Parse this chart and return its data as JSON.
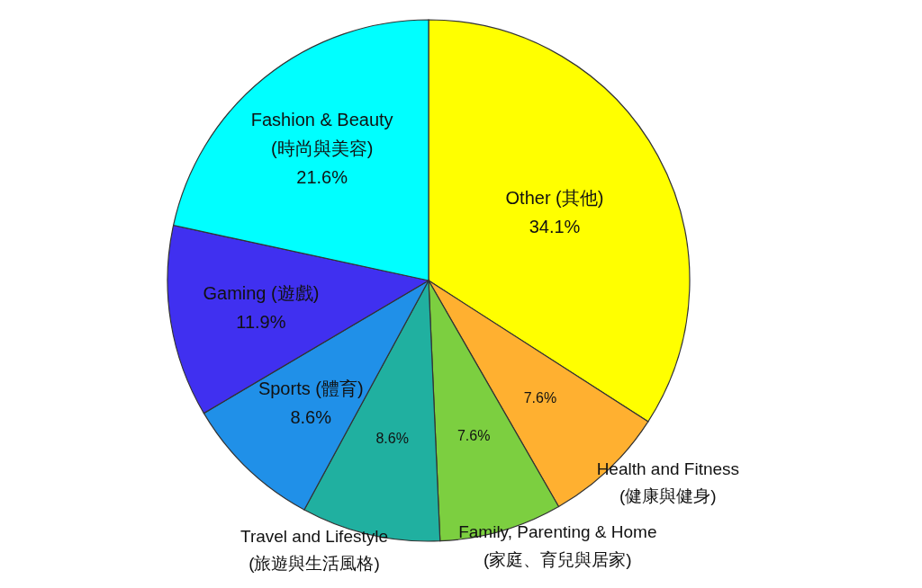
{
  "chart_data": {
    "type": "pie",
    "categories": [
      "Other (其他)",
      "Health and Fitness\n(健康與健身)",
      "Family, Parenting & Home\n(家庭、育兒與居家)",
      "Travel and Lifestyle\n(旅遊與生活風格)",
      "Sports (體育)",
      "Gaming (遊戲)",
      "Fashion & Beauty\n(時尚與美容)"
    ],
    "values": [
      34.1,
      7.6,
      7.6,
      8.6,
      8.6,
      11.9,
      21.6
    ],
    "colors": [
      "#ffff00",
      "#ffb030",
      "#7ccf40",
      "#20b0a0",
      "#2090e8",
      "#4030f0",
      "#00ffff"
    ],
    "value_labels": [
      "34.1%",
      "7.6%",
      "7.6%",
      "8.6%",
      "8.6%",
      "11.9%",
      "21.6%"
    ]
  }
}
